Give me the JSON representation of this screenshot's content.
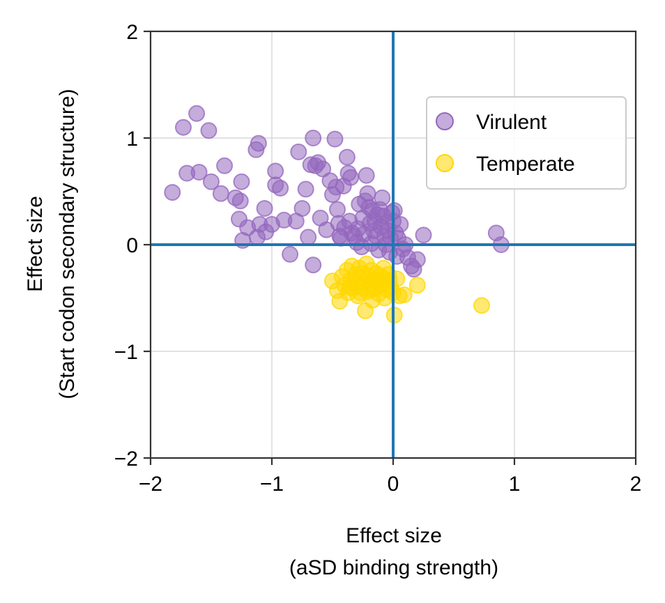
{
  "chart_data": {
    "type": "scatter",
    "xlabel": [
      "Effect size",
      "(aSD binding strength)"
    ],
    "ylabel": [
      "Effect size",
      "(Start codon secondary structure)"
    ],
    "xlim": [
      -2,
      2
    ],
    "ylim": [
      -2,
      2
    ],
    "xticks": [
      -2,
      -1,
      0,
      1,
      2
    ],
    "yticks": [
      -2,
      -1,
      0,
      1,
      2
    ],
    "xtick_labels": [
      "−2",
      "−1",
      "0",
      "1",
      "2"
    ],
    "ytick_labels": [
      "−2",
      "−1",
      "0",
      "1",
      "2"
    ],
    "grid": true,
    "reference_lines": {
      "x": 0,
      "y": 0,
      "color": "#1f77b4"
    },
    "legend": {
      "placement": "upper right"
    },
    "series": [
      {
        "name": "Virulent",
        "color": "#9467bd",
        "points": [
          [
            -1.82,
            0.49
          ],
          [
            -1.73,
            1.1
          ],
          [
            -1.7,
            0.67
          ],
          [
            -1.62,
            1.23
          ],
          [
            -1.6,
            0.68
          ],
          [
            -1.52,
            1.07
          ],
          [
            -1.5,
            0.59
          ],
          [
            -1.42,
            0.48
          ],
          [
            -1.39,
            0.74
          ],
          [
            -1.3,
            0.44
          ],
          [
            -1.26,
            0.41
          ],
          [
            -1.27,
            0.24
          ],
          [
            -1.25,
            0.59
          ],
          [
            -1.24,
            0.04
          ],
          [
            -1.2,
            0.16
          ],
          [
            -1.13,
            0.89
          ],
          [
            -1.11,
            0.95
          ],
          [
            -1.12,
            0.07
          ],
          [
            -1.1,
            0.19
          ],
          [
            -1.05,
            0.12
          ],
          [
            -1.06,
            0.34
          ],
          [
            -1.0,
            0.19
          ],
          [
            -0.97,
            0.69
          ],
          [
            -0.97,
            0.56
          ],
          [
            -0.93,
            0.53
          ],
          [
            -0.9,
            0.23
          ],
          [
            -0.85,
            -0.09
          ],
          [
            -0.8,
            0.22
          ],
          [
            -0.78,
            0.87
          ],
          [
            -0.75,
            0.34
          ],
          [
            -0.72,
            0.52
          ],
          [
            -0.7,
            0.07
          ],
          [
            -0.68,
            0.75
          ],
          [
            -0.66,
            1.0
          ],
          [
            -0.66,
            -0.19
          ],
          [
            -0.64,
            0.74
          ],
          [
            -0.62,
            0.77
          ],
          [
            -0.6,
            0.25
          ],
          [
            -0.58,
            0.71
          ],
          [
            -0.55,
            0.14
          ],
          [
            -0.52,
            0.6
          ],
          [
            -0.5,
            0.47
          ],
          [
            -0.48,
            0.99
          ],
          [
            -0.47,
            0.54
          ],
          [
            -0.46,
            0.33
          ],
          [
            -0.45,
            0.2
          ],
          [
            -0.44,
            0.08
          ],
          [
            -0.43,
            0.06
          ],
          [
            -0.41,
            0.55
          ],
          [
            -0.4,
            0.16
          ],
          [
            -0.38,
            0.82
          ],
          [
            -0.37,
            0.67
          ],
          [
            -0.35,
            0.63
          ],
          [
            -0.34,
            0.11
          ],
          [
            -0.32,
            0.08
          ],
          [
            -0.3,
            0.02
          ],
          [
            -0.28,
            0.38
          ],
          [
            -0.26,
            -0.02
          ],
          [
            -0.25,
            0.25
          ],
          [
            -0.24,
            0.1
          ],
          [
            -0.23,
            0.41
          ],
          [
            -0.22,
            0.65
          ],
          [
            -0.21,
            0.48
          ],
          [
            -0.2,
            0.35
          ],
          [
            -0.19,
            0.2
          ],
          [
            -0.18,
            0.01
          ],
          [
            -0.17,
            0.32
          ],
          [
            -0.16,
            0.13
          ],
          [
            -0.15,
            0.22
          ],
          [
            -0.14,
            0.08
          ],
          [
            -0.13,
            0.28
          ],
          [
            -0.12,
            -0.05
          ],
          [
            -0.11,
            0.33
          ],
          [
            -0.1,
            0.17
          ],
          [
            -0.09,
            0.44
          ],
          [
            -0.08,
            0.27
          ],
          [
            -0.07,
            0.08
          ],
          [
            -0.06,
            0.0
          ],
          [
            -0.05,
            0.21
          ],
          [
            -0.04,
            0.13
          ],
          [
            -0.03,
            -0.07
          ],
          [
            -0.02,
            0.06
          ],
          [
            -0.01,
            0.3
          ],
          [
            0.0,
            0.22
          ],
          [
            0.01,
            0.32
          ],
          [
            0.02,
            0.11
          ],
          [
            0.03,
            -0.11
          ],
          [
            0.04,
            0.06
          ],
          [
            0.06,
            0.19
          ],
          [
            0.08,
            -0.04
          ],
          [
            0.1,
            0.0
          ],
          [
            0.12,
            -0.12
          ],
          [
            0.15,
            -0.2
          ],
          [
            0.17,
            -0.23
          ],
          [
            0.2,
            -0.14
          ],
          [
            0.25,
            0.09
          ],
          [
            0.85,
            0.11
          ],
          [
            0.89,
            0.0
          ],
          [
            -0.36,
            0.22
          ],
          [
            -0.29,
            0.15
          ]
        ]
      },
      {
        "name": "Temperate",
        "color": "#ffd700",
        "points": [
          [
            -0.5,
            -0.34
          ],
          [
            -0.46,
            -0.43
          ],
          [
            -0.44,
            -0.53
          ],
          [
            -0.42,
            -0.3
          ],
          [
            -0.4,
            -0.38
          ],
          [
            -0.38,
            -0.24
          ],
          [
            -0.37,
            -0.45
          ],
          [
            -0.35,
            -0.33
          ],
          [
            -0.34,
            -0.2
          ],
          [
            -0.33,
            -0.41
          ],
          [
            -0.31,
            -0.28
          ],
          [
            -0.3,
            -0.36
          ],
          [
            -0.29,
            -0.48
          ],
          [
            -0.28,
            -0.22
          ],
          [
            -0.27,
            -0.31
          ],
          [
            -0.26,
            -0.4
          ],
          [
            -0.25,
            -0.27
          ],
          [
            -0.24,
            -0.35
          ],
          [
            -0.23,
            -0.62
          ],
          [
            -0.22,
            -0.18
          ],
          [
            -0.21,
            -0.44
          ],
          [
            -0.2,
            -0.3
          ],
          [
            -0.19,
            -0.37
          ],
          [
            -0.18,
            -0.24
          ],
          [
            -0.17,
            -0.52
          ],
          [
            -0.16,
            -0.33
          ],
          [
            -0.15,
            -0.41
          ],
          [
            -0.14,
            -0.27
          ],
          [
            -0.13,
            -0.35
          ],
          [
            -0.12,
            -0.46
          ],
          [
            -0.11,
            -0.29
          ],
          [
            -0.1,
            -0.38
          ],
          [
            -0.09,
            -0.31
          ],
          [
            -0.08,
            -0.22
          ],
          [
            -0.07,
            -0.5
          ],
          [
            -0.06,
            -0.36
          ],
          [
            -0.05,
            -0.42
          ],
          [
            -0.04,
            -0.28
          ],
          [
            -0.03,
            -0.33
          ],
          [
            -0.02,
            -0.4
          ],
          [
            0.0,
            -0.45
          ],
          [
            0.01,
            -0.66
          ],
          [
            0.03,
            -0.32
          ],
          [
            0.05,
            -0.48
          ],
          [
            0.09,
            -0.47
          ],
          [
            0.2,
            -0.38
          ],
          [
            0.73,
            -0.57
          ],
          [
            -0.36,
            -0.4
          ],
          [
            -0.27,
            -0.45
          ],
          [
            -0.18,
            -0.42
          ]
        ]
      }
    ]
  }
}
